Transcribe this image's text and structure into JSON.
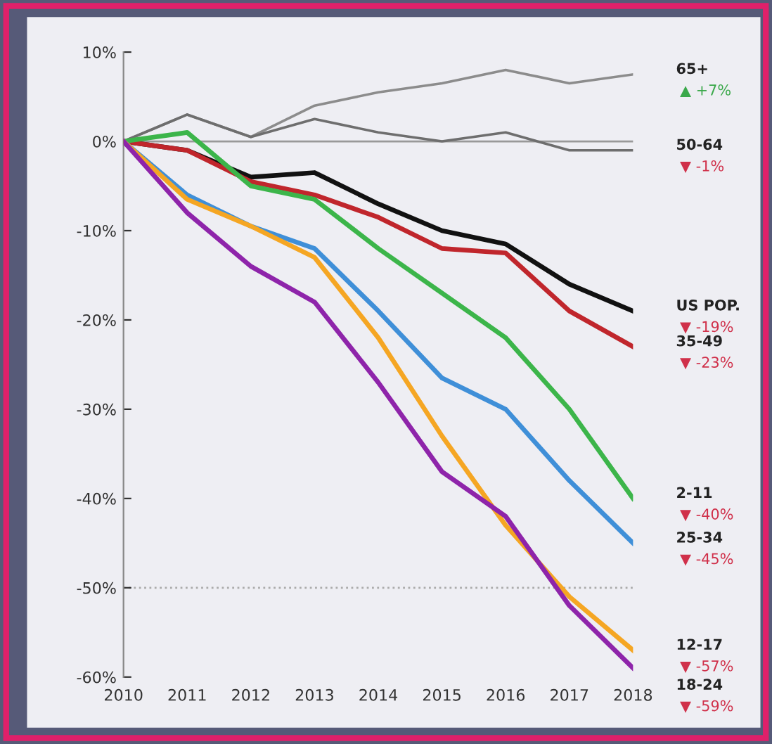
{
  "chart_data": {
    "type": "line",
    "x": [
      2010,
      2011,
      2012,
      2013,
      2014,
      2015,
      2016,
      2017,
      2018
    ],
    "series": [
      {
        "name": "65+",
        "color": "#8c8c8c",
        "values": [
          0,
          3,
          0.5,
          4,
          5.5,
          6.5,
          8,
          6.5,
          7.5
        ]
      },
      {
        "name": "50-64",
        "color": "#6e6e6e",
        "values": [
          0,
          3,
          0.5,
          2.5,
          1,
          0,
          1,
          -1,
          -1
        ]
      },
      {
        "name": "US POP.",
        "color": "#111111",
        "values": [
          0,
          -1,
          -4,
          -3.5,
          -7,
          -10,
          -11.5,
          -16,
          -19
        ]
      },
      {
        "name": "35-49",
        "color": "#c0262c",
        "values": [
          0,
          -1,
          -4.5,
          -6,
          -8.5,
          -12,
          -12.5,
          -19,
          -23
        ]
      },
      {
        "name": "2-11",
        "color": "#3cb54a",
        "values": [
          0,
          1,
          -5,
          -6.5,
          -12,
          -17,
          -22,
          -30,
          -40
        ]
      },
      {
        "name": "25-34",
        "color": "#3f8fd8",
        "values": [
          0,
          -6,
          -9.5,
          -12,
          -19,
          -26.5,
          -30,
          -38,
          -45
        ]
      },
      {
        "name": "12-17",
        "color": "#f5a623",
        "values": [
          0,
          -6.5,
          -9.5,
          -13,
          -22,
          -33,
          -43,
          -51,
          -57
        ]
      },
      {
        "name": "18-24",
        "color": "#8e24aa",
        "values": [
          0,
          -8,
          -14,
          -18,
          -27,
          -37,
          -42,
          -52,
          -59
        ]
      }
    ],
    "annotations": [
      "▲ +7%",
      "▼ -1%",
      "▼ -19%",
      "▼ -23%",
      "▼ -40%",
      "▼ -45%",
      "▼ -57%",
      "▼ -59%"
    ],
    "xlim": [
      2010,
      2018
    ],
    "xticks": [
      2010,
      2011,
      2012,
      2013,
      2014,
      2015,
      2016,
      2017,
      2018
    ],
    "ylim": [
      -60,
      10
    ],
    "yticks": [
      {
        "value": 10,
        "label": "10%"
      },
      {
        "value": 0,
        "label": "0%"
      },
      {
        "value": -10,
        "label": "-10%"
      },
      {
        "value": -20,
        "label": "-20%"
      },
      {
        "value": -30,
        "label": "-30%"
      },
      {
        "value": -40,
        "label": "-40%"
      },
      {
        "value": -50,
        "label": "-50%"
      },
      {
        "value": -60,
        "label": "-60%"
      }
    ],
    "ref_lines": [
      {
        "axis": "y",
        "value": 0,
        "color": "#999999",
        "line_style": "solid"
      },
      {
        "axis": "y",
        "value": -50,
        "color": "#aaaaaa",
        "line_style": "dotted"
      }
    ],
    "grid": false,
    "legend": false,
    "marker": "none",
    "line_style": "solid"
  }
}
